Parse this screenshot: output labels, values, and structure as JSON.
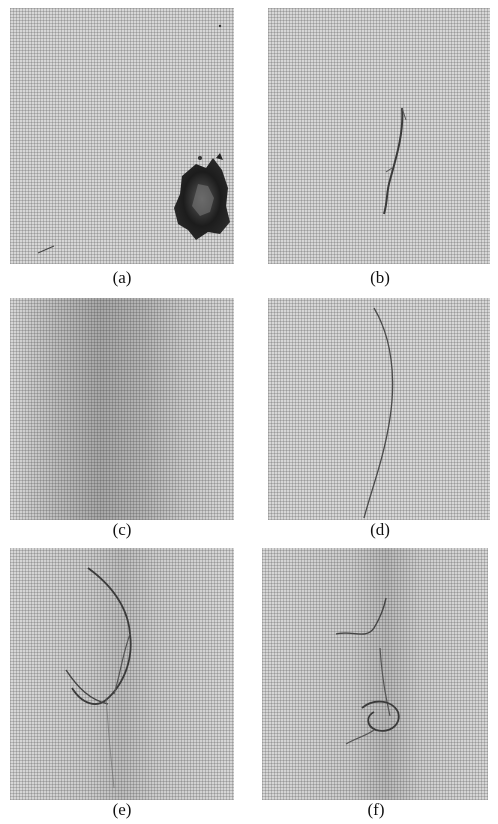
{
  "figure": {
    "panels": [
      {
        "caption": "(a)"
      },
      {
        "caption": "(b)"
      },
      {
        "caption": "(c)"
      },
      {
        "caption": "(d)"
      },
      {
        "caption": "(e)"
      },
      {
        "caption": "(f)"
      }
    ]
  }
}
